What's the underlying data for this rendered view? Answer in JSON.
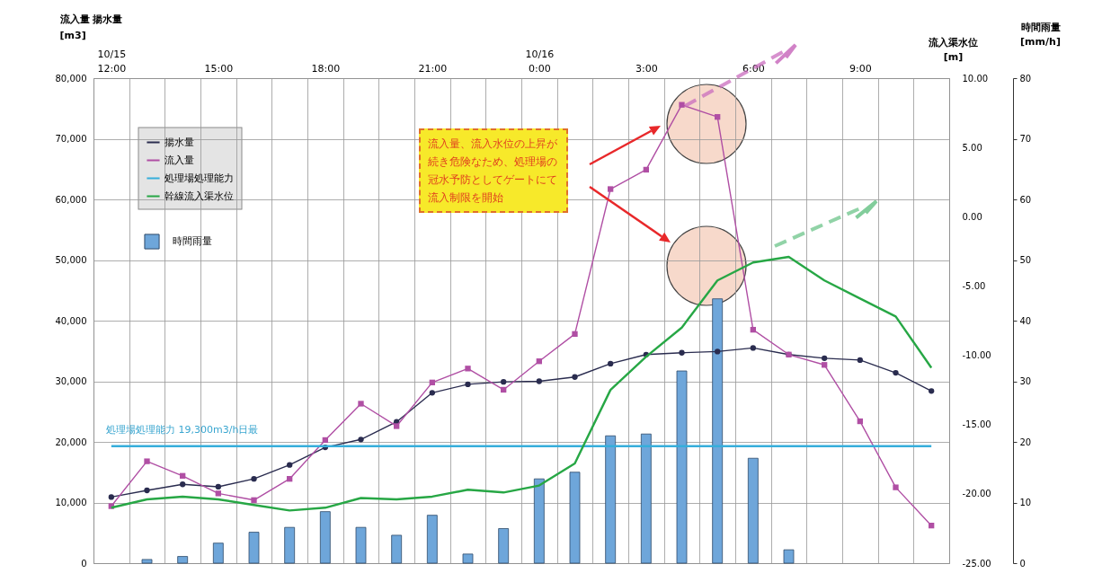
{
  "chart_data": {
    "type": "line",
    "ylabel": "流入量 揚水量\n[m3]",
    "y2label": "流入渠水位\n[m]",
    "y3label": "時間雨量\n[mm/h]",
    "categories": [
      "10/15\n12:00",
      null,
      null,
      "15:00",
      null,
      null,
      "18:00",
      null,
      null,
      "21:00",
      null,
      null,
      "10/16\n0:00",
      null,
      null,
      "3:00",
      null,
      null,
      "6:00",
      null,
      null,
      "9:00",
      null,
      null
    ],
    "series": [
      {
        "name": "揚水量",
        "color": "#2a2c4f",
        "marker": "circle",
        "values": [
          10900,
          12000,
          13000,
          12600,
          13900,
          16200,
          19100,
          20400,
          23300,
          28100,
          29500,
          29900,
          30000,
          30700,
          32900,
          34400,
          34700,
          34900,
          35500,
          34400,
          33800,
          33500,
          31400,
          28400
        ]
      },
      {
        "name": "流入量",
        "color": "#b04fa4",
        "marker": "square",
        "values": [
          9400,
          16800,
          14400,
          11500,
          10400,
          13900,
          20300,
          26300,
          22600,
          29800,
          32100,
          28600,
          33300,
          37800,
          61700,
          64900,
          75600,
          73600,
          38500,
          34400,
          32700,
          23400,
          12500,
          6200
        ]
      },
      {
        "name": "処理場処理能力",
        "color": "#36aedb",
        "marker": "none",
        "values": [
          19300,
          19300,
          19300,
          19300,
          19300,
          19300,
          19300,
          19300,
          19300,
          19300,
          19300,
          19300,
          19300,
          19300,
          19300,
          19300,
          19300,
          19300,
          19300,
          19300,
          19300,
          19300,
          19300,
          19300
        ]
      },
      {
        "name": "幹線流入渠水位",
        "color": "#27a745",
        "marker": "none",
        "axis": "y2",
        "values": [
          -21.0,
          -20.4,
          -20.2,
          -20.4,
          -20.8,
          -21.2,
          -21.0,
          -20.3,
          -20.4,
          -20.2,
          -19.7,
          -19.9,
          -19.4,
          -17.8,
          -12.5,
          -10.1,
          -8.0,
          -4.6,
          -3.3,
          -2.9,
          -4.6,
          -5.9,
          -7.2,
          -10.9
        ]
      },
      {
        "name": "時間雨量",
        "type": "bar",
        "color": "#6ea6da",
        "axis": "y3",
        "values": [
          null,
          0.6,
          1.1,
          3.3,
          5.1,
          5.9,
          8.5,
          5.9,
          4.6,
          7.9,
          1.5,
          5.7,
          13.9,
          15.0,
          21.0,
          21.3,
          31.7,
          43.6,
          17.3,
          2.2,
          null,
          null,
          null,
          null
        ]
      }
    ],
    "ylim": [
      0,
      80000
    ],
    "yticks": [
      {
        "value": 0,
        "label": "0"
      },
      {
        "value": 10000,
        "label": "10,000"
      },
      {
        "value": 20000,
        "label": "20,000"
      },
      {
        "value": 30000,
        "label": "30,000"
      },
      {
        "value": 40000,
        "label": "40,000"
      },
      {
        "value": 50000,
        "label": "50,000"
      },
      {
        "value": 60000,
        "label": "60,000"
      },
      {
        "value": 70000,
        "label": "70,000"
      },
      {
        "value": 80000,
        "label": "80,000"
      }
    ],
    "y2lim": [
      -25,
      10
    ],
    "y2ticks": [
      {
        "value": -25,
        "label": "-25.00"
      },
      {
        "value": -20,
        "label": "-20.00"
      },
      {
        "value": -15,
        "label": "-15.00"
      },
      {
        "value": -10,
        "label": "-10.00"
      },
      {
        "value": -5,
        "label": "-5.00"
      },
      {
        "value": 0,
        "label": "0.00"
      },
      {
        "value": 5,
        "label": "5.00"
      },
      {
        "value": 10,
        "label": "10.00"
      }
    ],
    "y3lim": [
      0,
      80
    ],
    "y3ticks": [
      0,
      10,
      20,
      30,
      40,
      50,
      60,
      70,
      80
    ],
    "annotations": [
      "処理場処理能力 19,300m3/h日最",
      "流入量、流入水位の上昇が続き危険なため、処理場の冠水予防としてゲートにて流入制限を開始"
    ],
    "grid": true,
    "legend": "top left"
  }
}
